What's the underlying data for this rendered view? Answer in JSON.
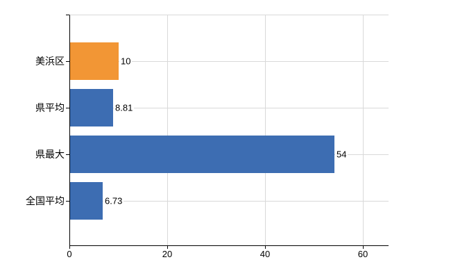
{
  "chart_data": {
    "type": "bar",
    "orientation": "horizontal",
    "title": "",
    "xlabel": "",
    "ylabel": "",
    "categories": [
      "美浜区",
      "県平均",
      "県最大",
      "全国平均"
    ],
    "values": [
      10,
      8.81,
      54,
      6.73
    ],
    "value_labels": [
      "10",
      "8.81",
      "54",
      "6.73"
    ],
    "bar_colors": [
      "#f29635",
      "#3d6db2",
      "#3d6db2",
      "#3d6db2"
    ],
    "x_ticks": [
      0,
      20,
      40,
      60
    ],
    "x_tick_labels": [
      "0",
      "20",
      "40",
      "60"
    ],
    "xlim": [
      0,
      65.25
    ],
    "grid": true,
    "legend": false,
    "colors": {
      "highlight_bar": "#f29635",
      "default_bar": "#3d6db2",
      "grid_line": "#d9d9d9",
      "axis_line": "#000000",
      "text": "#000000",
      "background": "#ffffff"
    }
  }
}
